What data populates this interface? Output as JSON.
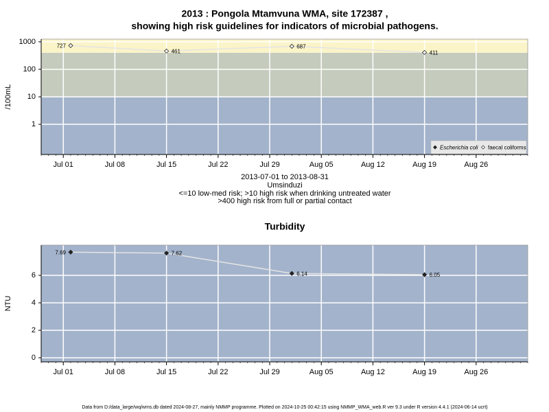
{
  "chart_data": [
    {
      "type": "line",
      "title": "2013 : Pongola Mtamvuna WMA, site 172387 ,",
      "subtitle": "showing high risk guidelines for indicators of microbial pathogens.",
      "annotations": [
        "2013-07-01 to 2013-08-31",
        "Umsinduzi",
        "<=10 low-med risk; >10 high risk when drinking untreated water",
        ">400 high risk from full or partial contact"
      ],
      "ylabel": "/100mL",
      "log_scale": true,
      "x": [
        "2013-07-02",
        "2013-07-15",
        "2013-08-01",
        "2013-08-19"
      ],
      "series": [
        {
          "name": "Escherichia coli",
          "color": "#222222",
          "values": [
            null,
            null,
            null,
            null
          ]
        },
        {
          "name": "faecal coliforms",
          "color": "#e4e4e4",
          "values": [
            727,
            461,
            687,
            411
          ]
        }
      ],
      "thresholds": [
        10,
        400
      ],
      "band_colors": [
        "#a3b3cb",
        "#c5cbbd",
        "#fbf4c8"
      ],
      "xlim": [
        "2013-06-28",
        "2013-09-02"
      ],
      "xticks": [
        {
          "value": "2013-07-01",
          "label": "Jul 01"
        },
        {
          "value": "2013-07-08",
          "label": "Jul 08"
        },
        {
          "value": "2013-07-15",
          "label": "Jul 15"
        },
        {
          "value": "2013-07-22",
          "label": "Jul 22"
        },
        {
          "value": "2013-07-29",
          "label": "Jul 29"
        },
        {
          "value": "2013-08-05",
          "label": "Aug 05"
        },
        {
          "value": "2013-08-12",
          "label": "Aug 12"
        },
        {
          "value": "2013-08-19",
          "label": "Aug 19"
        },
        {
          "value": "2013-08-26",
          "label": "Aug 26"
        }
      ],
      "ylim": [
        0.08,
        1250
      ],
      "yticks": [
        1,
        10,
        100,
        1000
      ],
      "grid": true,
      "legend": "bottom-right"
    },
    {
      "type": "line",
      "title": "Turbidity",
      "ylabel": "NTU",
      "x": [
        "2013-07-02",
        "2013-07-15",
        "2013-08-01",
        "2013-08-19"
      ],
      "series": [
        {
          "name": "Turbidity",
          "color": "#e4e4e4",
          "values": [
            7.69,
            7.62,
            6.14,
            6.05
          ]
        }
      ],
      "band_colors": [
        "#a3b3cb"
      ],
      "xlim": [
        "2013-06-28",
        "2013-09-02"
      ],
      "xticks": [
        {
          "value": "2013-07-01",
          "label": "Jul 01"
        },
        {
          "value": "2013-07-08",
          "label": "Jul 08"
        },
        {
          "value": "2013-07-15",
          "label": "Jul 15"
        },
        {
          "value": "2013-07-22",
          "label": "Jul 22"
        },
        {
          "value": "2013-07-29",
          "label": "Jul 29"
        },
        {
          "value": "2013-08-05",
          "label": "Aug 05"
        },
        {
          "value": "2013-08-12",
          "label": "Aug 12"
        },
        {
          "value": "2013-08-19",
          "label": "Aug 19"
        },
        {
          "value": "2013-08-26",
          "label": "Aug 26"
        }
      ],
      "ylim": [
        -0.3,
        8.2
      ],
      "yticks": [
        0,
        2,
        4,
        6
      ],
      "grid": true
    }
  ],
  "footer": "Data from D:/data_large/wq/wms.db dated 2024-08-27, mainly NMMP programme. Plotted on 2024-10-25 00:42:15 using NMMP_WMA_web.R ver 9.3 under R version 4.4.1 (2024-06-14 ucrt)"
}
